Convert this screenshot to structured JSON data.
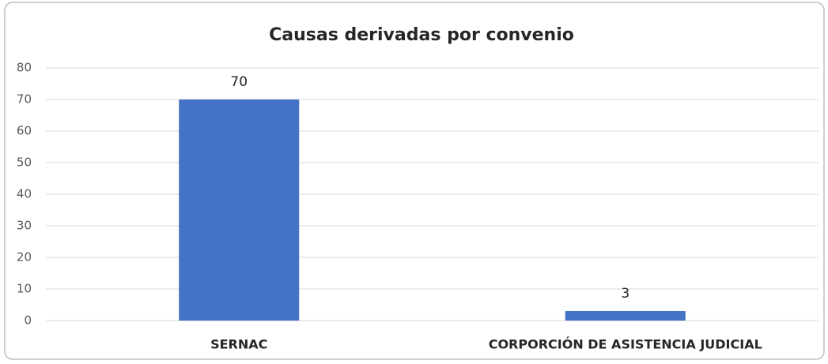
{
  "chart_data": {
    "type": "bar",
    "title": "Causas derivadas por convenio",
    "categories": [
      "SERNAC",
      "CORPORCIÓN DE ASISTENCIA JUDICIAL"
    ],
    "values": [
      70,
      3
    ],
    "color": "#4472c4",
    "ylim": [
      0,
      80
    ],
    "yticks": [
      0,
      10,
      20,
      30,
      40,
      50,
      60,
      70,
      80
    ],
    "grid": true
  }
}
